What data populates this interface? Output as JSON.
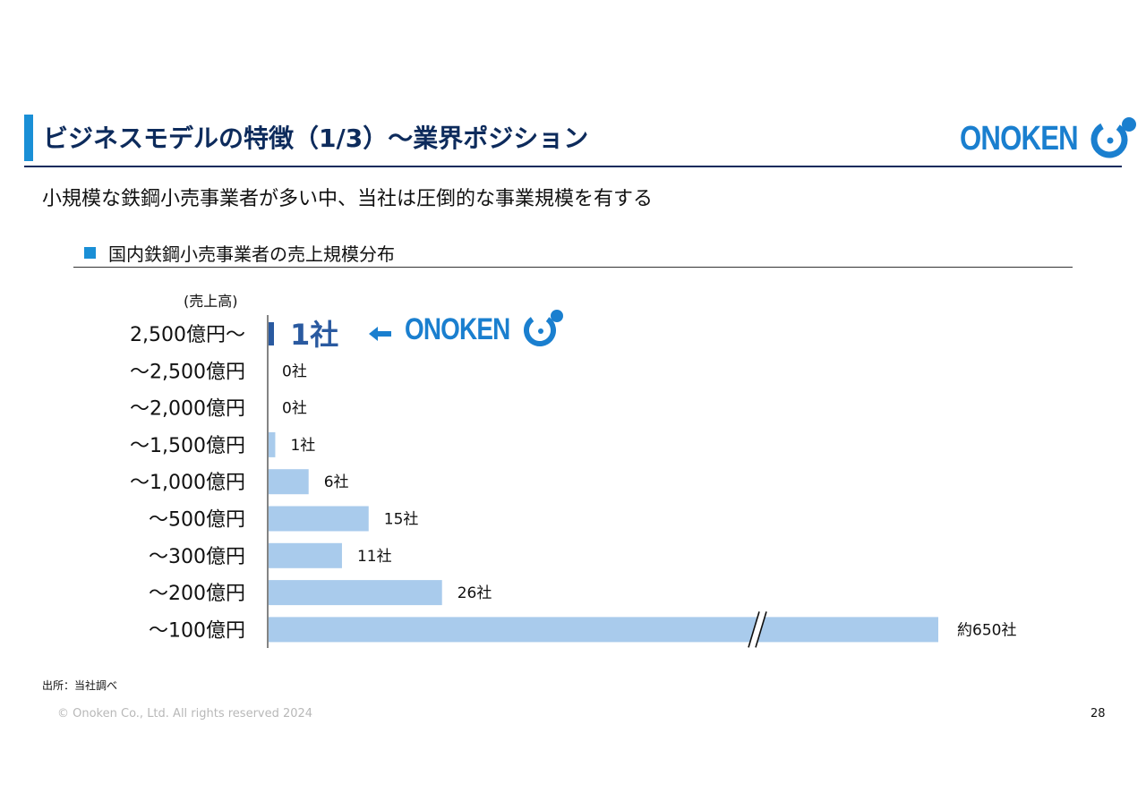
{
  "header": {
    "title": "ビジネスモデルの特徴（1/3）～業界ポジション",
    "logo_text": "ONOKEN",
    "brand_color": "#1a7fcf",
    "title_color": "#0d2b5c"
  },
  "subtitle": "小規模な鉄鋼小売事業者が多い中、当社は圧倒的な事業規模を有する",
  "section": {
    "title": "国内鉄鋼小売事業者の売上規模分布",
    "marker_color": "#1a8fd6"
  },
  "chart_data": {
    "type": "bar",
    "orientation": "horizontal",
    "ylabel": "(売上高)",
    "categories": [
      "2,500億円～",
      "～2,500億円",
      "～2,000億円",
      "～1,500億円",
      "～1,000億円",
      "～500億円",
      "～300億円",
      "～200億円",
      "～100億円"
    ],
    "values": [
      1,
      0,
      0,
      1,
      6,
      15,
      11,
      26,
      650
    ],
    "value_labels": [
      "1社",
      "0社",
      "0社",
      "1社",
      "6社",
      "15社",
      "11社",
      "26社",
      "約650社"
    ],
    "axis_break_on_category": "～100億円",
    "highlight_category": "2,500億円～",
    "highlight_label": "1社",
    "highlight_color": "#2a5aa0",
    "bar_color": "#a9cbec",
    "highlight_logo_text": "ONOKEN"
  },
  "footer": {
    "source": "出所：当社調べ",
    "copyright": "© Onoken Co., Ltd. All rights reserved 2024",
    "page_number": "28"
  }
}
